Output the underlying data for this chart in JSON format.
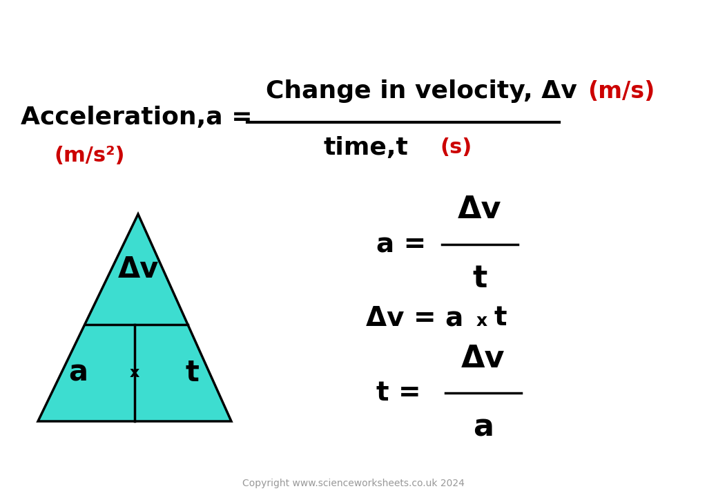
{
  "bg_color": "#ffffff",
  "triangle_color": "#3DDDD0",
  "triangle_outline": "#000000",
  "text_color_black": "#000000",
  "text_color_red": "#cc0000",
  "title_line1": "Change in velocity, Δv",
  "title_accel": "Acceleration,a =",
  "title_units_top": "(m/s)",
  "title_denom": "time,t",
  "title_units_denom": "(s)",
  "title_units_accel": "(m/s²)",
  "formula1_lhs": "a =",
  "formula1_num": "Δv",
  "formula1_den": "t",
  "formula3_lhs": "t =",
  "formula3_num": "Δv",
  "formula3_den": "a",
  "tri_top_label": "Δv",
  "tri_bot_left": "a",
  "tri_bot_x": "x",
  "tri_bot_right": "t",
  "copyright": "Copyright www.scienceworksheets.co.uk 2024",
  "figsize": [
    10.24,
    7.24
  ],
  "dpi": 100
}
